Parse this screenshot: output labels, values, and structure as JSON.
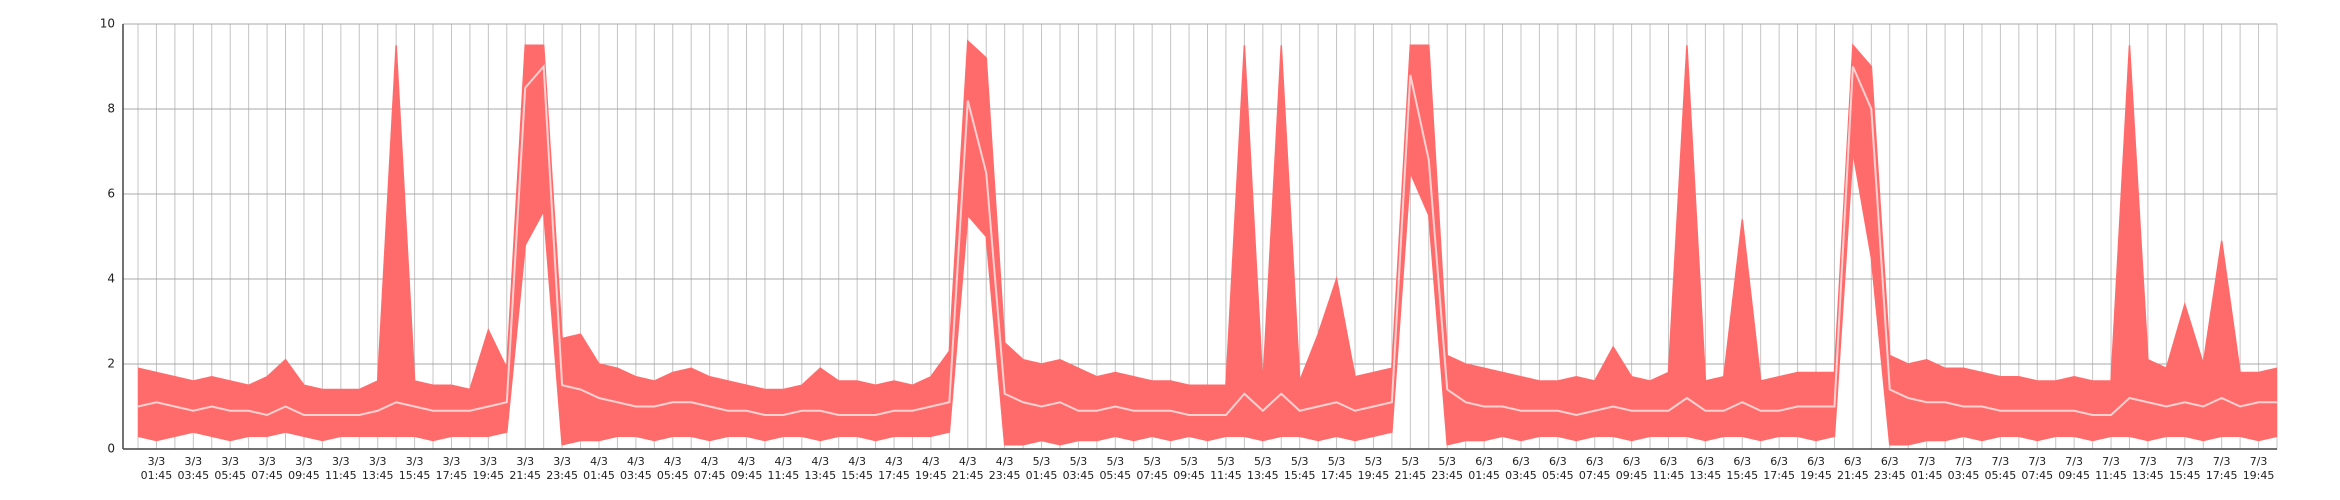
{
  "chart_data": {
    "type": "range_area",
    "x": [
      null,
      "3/3 01:45",
      null,
      "3/3 03:45",
      null,
      "3/3 05:45",
      null,
      "3/3 07:45",
      null,
      "3/3 09:45",
      null,
      "3/3 11:45",
      null,
      "3/3 13:45",
      null,
      "3/3 15:45",
      null,
      "3/3 17:45",
      null,
      "3/3 19:45",
      null,
      "3/3 21:45",
      null,
      "3/3 23:45",
      null,
      "4/3 01:45",
      null,
      "4/3 03:45",
      null,
      "4/3 05:45",
      null,
      "4/3 07:45",
      null,
      "4/3 09:45",
      null,
      "4/3 11:45",
      null,
      "4/3 13:45",
      null,
      "4/3 15:45",
      null,
      "4/3 17:45",
      null,
      "4/3 19:45",
      null,
      "4/3 21:45",
      null,
      "4/3 23:45",
      null,
      "5/3 01:45",
      null,
      "5/3 03:45",
      null,
      "5/3 05:45",
      null,
      "5/3 07:45",
      null,
      "5/3 09:45",
      null,
      "5/3 11:45",
      null,
      "5/3 13:45",
      null,
      "5/3 15:45",
      null,
      "5/3 17:45",
      null,
      "5/3 19:45",
      null,
      "5/3 21:45",
      null,
      "5/3 23:45",
      null,
      "6/3 01:45",
      null,
      "6/3 03:45",
      null,
      "6/3 05:45",
      null,
      "6/3 07:45",
      null,
      "6/3 09:45",
      null,
      "6/3 11:45",
      null,
      "6/3 13:45",
      null,
      "6/3 15:45",
      null,
      "6/3 17:45",
      null,
      "6/3 19:45",
      null,
      "6/3 21:45",
      null,
      "6/3 23:45",
      null,
      "7/3 01:45",
      null,
      "7/3 03:45",
      null,
      "7/3 05:45",
      null,
      "7/3 07:45",
      null,
      "7/3 09:45",
      null,
      "7/3 11:45",
      null,
      "7/3 13:45",
      null,
      "7/3 15:45",
      null,
      "7/3 17:45",
      null,
      "7/3 19:45",
      null
    ],
    "series": [
      {
        "color": "#ff6b6b",
        "values": [
          1.9,
          1.8,
          1.7,
          1.6,
          1.7,
          1.6,
          1.5,
          1.7,
          2.1,
          1.5,
          1.4,
          1.4,
          1.4,
          1.6,
          9.5,
          1.6,
          1.5,
          1.5,
          1.4,
          2.8,
          1.9,
          9.5,
          9.5,
          2.6,
          2.7,
          2.0,
          1.9,
          1.7,
          1.6,
          1.8,
          1.9,
          1.7,
          1.6,
          1.5,
          1.4,
          1.4,
          1.5,
          1.9,
          1.6,
          1.6,
          1.5,
          1.6,
          1.5,
          1.7,
          2.3,
          9.6,
          9.2,
          2.5,
          2.1,
          2.0,
          2.1,
          1.9,
          1.7,
          1.8,
          1.7,
          1.6,
          1.6,
          1.5,
          1.5,
          1.5,
          9.5,
          1.5,
          9.5,
          1.6,
          2.7,
          4.0,
          1.7,
          1.8,
          1.9,
          9.5,
          9.5,
          2.2,
          2.0,
          1.9,
          1.8,
          1.7,
          1.6,
          1.6,
          1.7,
          1.6,
          2.4,
          1.7,
          1.6,
          1.8,
          9.5,
          1.6,
          1.7,
          5.4,
          1.6,
          1.7,
          1.8,
          1.8,
          1.8,
          9.5,
          9.0,
          2.2,
          2.0,
          2.1,
          1.9,
          1.9,
          1.8,
          1.7,
          1.7,
          1.6,
          1.6,
          1.7,
          1.6,
          1.6,
          9.5,
          2.1,
          1.9,
          3.4,
          2.0,
          4.9,
          1.8,
          1.8,
          1.9
        ]
      },
      {
        "color": "#ff6b6b",
        "values": [
          0.3,
          0.2,
          0.3,
          0.4,
          0.3,
          0.2,
          0.3,
          0.3,
          0.4,
          0.3,
          0.2,
          0.3,
          0.3,
          0.3,
          0.3,
          0.3,
          0.2,
          0.3,
          0.3,
          0.3,
          0.4,
          4.8,
          5.6,
          0.1,
          0.2,
          0.2,
          0.3,
          0.3,
          0.2,
          0.3,
          0.3,
          0.2,
          0.3,
          0.3,
          0.2,
          0.3,
          0.3,
          0.2,
          0.3,
          0.3,
          0.2,
          0.3,
          0.3,
          0.3,
          0.4,
          5.5,
          5.0,
          0.1,
          0.1,
          0.2,
          0.1,
          0.2,
          0.2,
          0.3,
          0.2,
          0.3,
          0.2,
          0.3,
          0.2,
          0.3,
          0.3,
          0.2,
          0.3,
          0.3,
          0.2,
          0.3,
          0.2,
          0.3,
          0.4,
          6.5,
          5.5,
          0.1,
          0.2,
          0.2,
          0.3,
          0.2,
          0.3,
          0.3,
          0.2,
          0.3,
          0.3,
          0.2,
          0.3,
          0.3,
          0.3,
          0.2,
          0.3,
          0.3,
          0.2,
          0.3,
          0.3,
          0.2,
          0.3,
          7.0,
          4.5,
          0.1,
          0.1,
          0.2,
          0.2,
          0.3,
          0.2,
          0.3,
          0.3,
          0.2,
          0.3,
          0.3,
          0.2,
          0.3,
          0.3,
          0.2,
          0.3,
          0.3,
          0.2,
          0.3,
          0.3,
          0.2,
          0.3
        ]
      },
      {
        "color": "#ffd0d0",
        "values": [
          1.0,
          1.1,
          1.0,
          0.9,
          1.0,
          0.9,
          0.9,
          0.8,
          1.0,
          0.8,
          0.8,
          0.8,
          0.8,
          0.9,
          1.1,
          1.0,
          0.9,
          0.9,
          0.9,
          1.0,
          1.1,
          8.5,
          9.0,
          1.5,
          1.4,
          1.2,
          1.1,
          1.0,
          1.0,
          1.1,
          1.1,
          1.0,
          0.9,
          0.9,
          0.8,
          0.8,
          0.9,
          0.9,
          0.8,
          0.8,
          0.8,
          0.9,
          0.9,
          1.0,
          1.1,
          8.2,
          6.5,
          1.3,
          1.1,
          1.0,
          1.1,
          0.9,
          0.9,
          1.0,
          0.9,
          0.9,
          0.9,
          0.8,
          0.8,
          0.8,
          1.3,
          0.9,
          1.3,
          0.9,
          1.0,
          1.1,
          0.9,
          1.0,
          1.1,
          8.8,
          6.8,
          1.4,
          1.1,
          1.0,
          1.0,
          0.9,
          0.9,
          0.9,
          0.8,
          0.9,
          1.0,
          0.9,
          0.9,
          0.9,
          1.2,
          0.9,
          0.9,
          1.1,
          0.9,
          0.9,
          1.0,
          1.0,
          1.0,
          9.0,
          8.0,
          1.4,
          1.2,
          1.1,
          1.1,
          1.0,
          1.0,
          0.9,
          0.9,
          0.9,
          0.9,
          0.9,
          0.8,
          0.8,
          1.2,
          1.1,
          1.0,
          1.1,
          1.0,
          1.2,
          1.0,
          1.1,
          1.1
        ]
      }
    ],
    "ylim": [
      0,
      10
    ],
    "yticks": [
      0,
      2,
      4,
      6,
      8,
      10
    ],
    "grid": true
  }
}
